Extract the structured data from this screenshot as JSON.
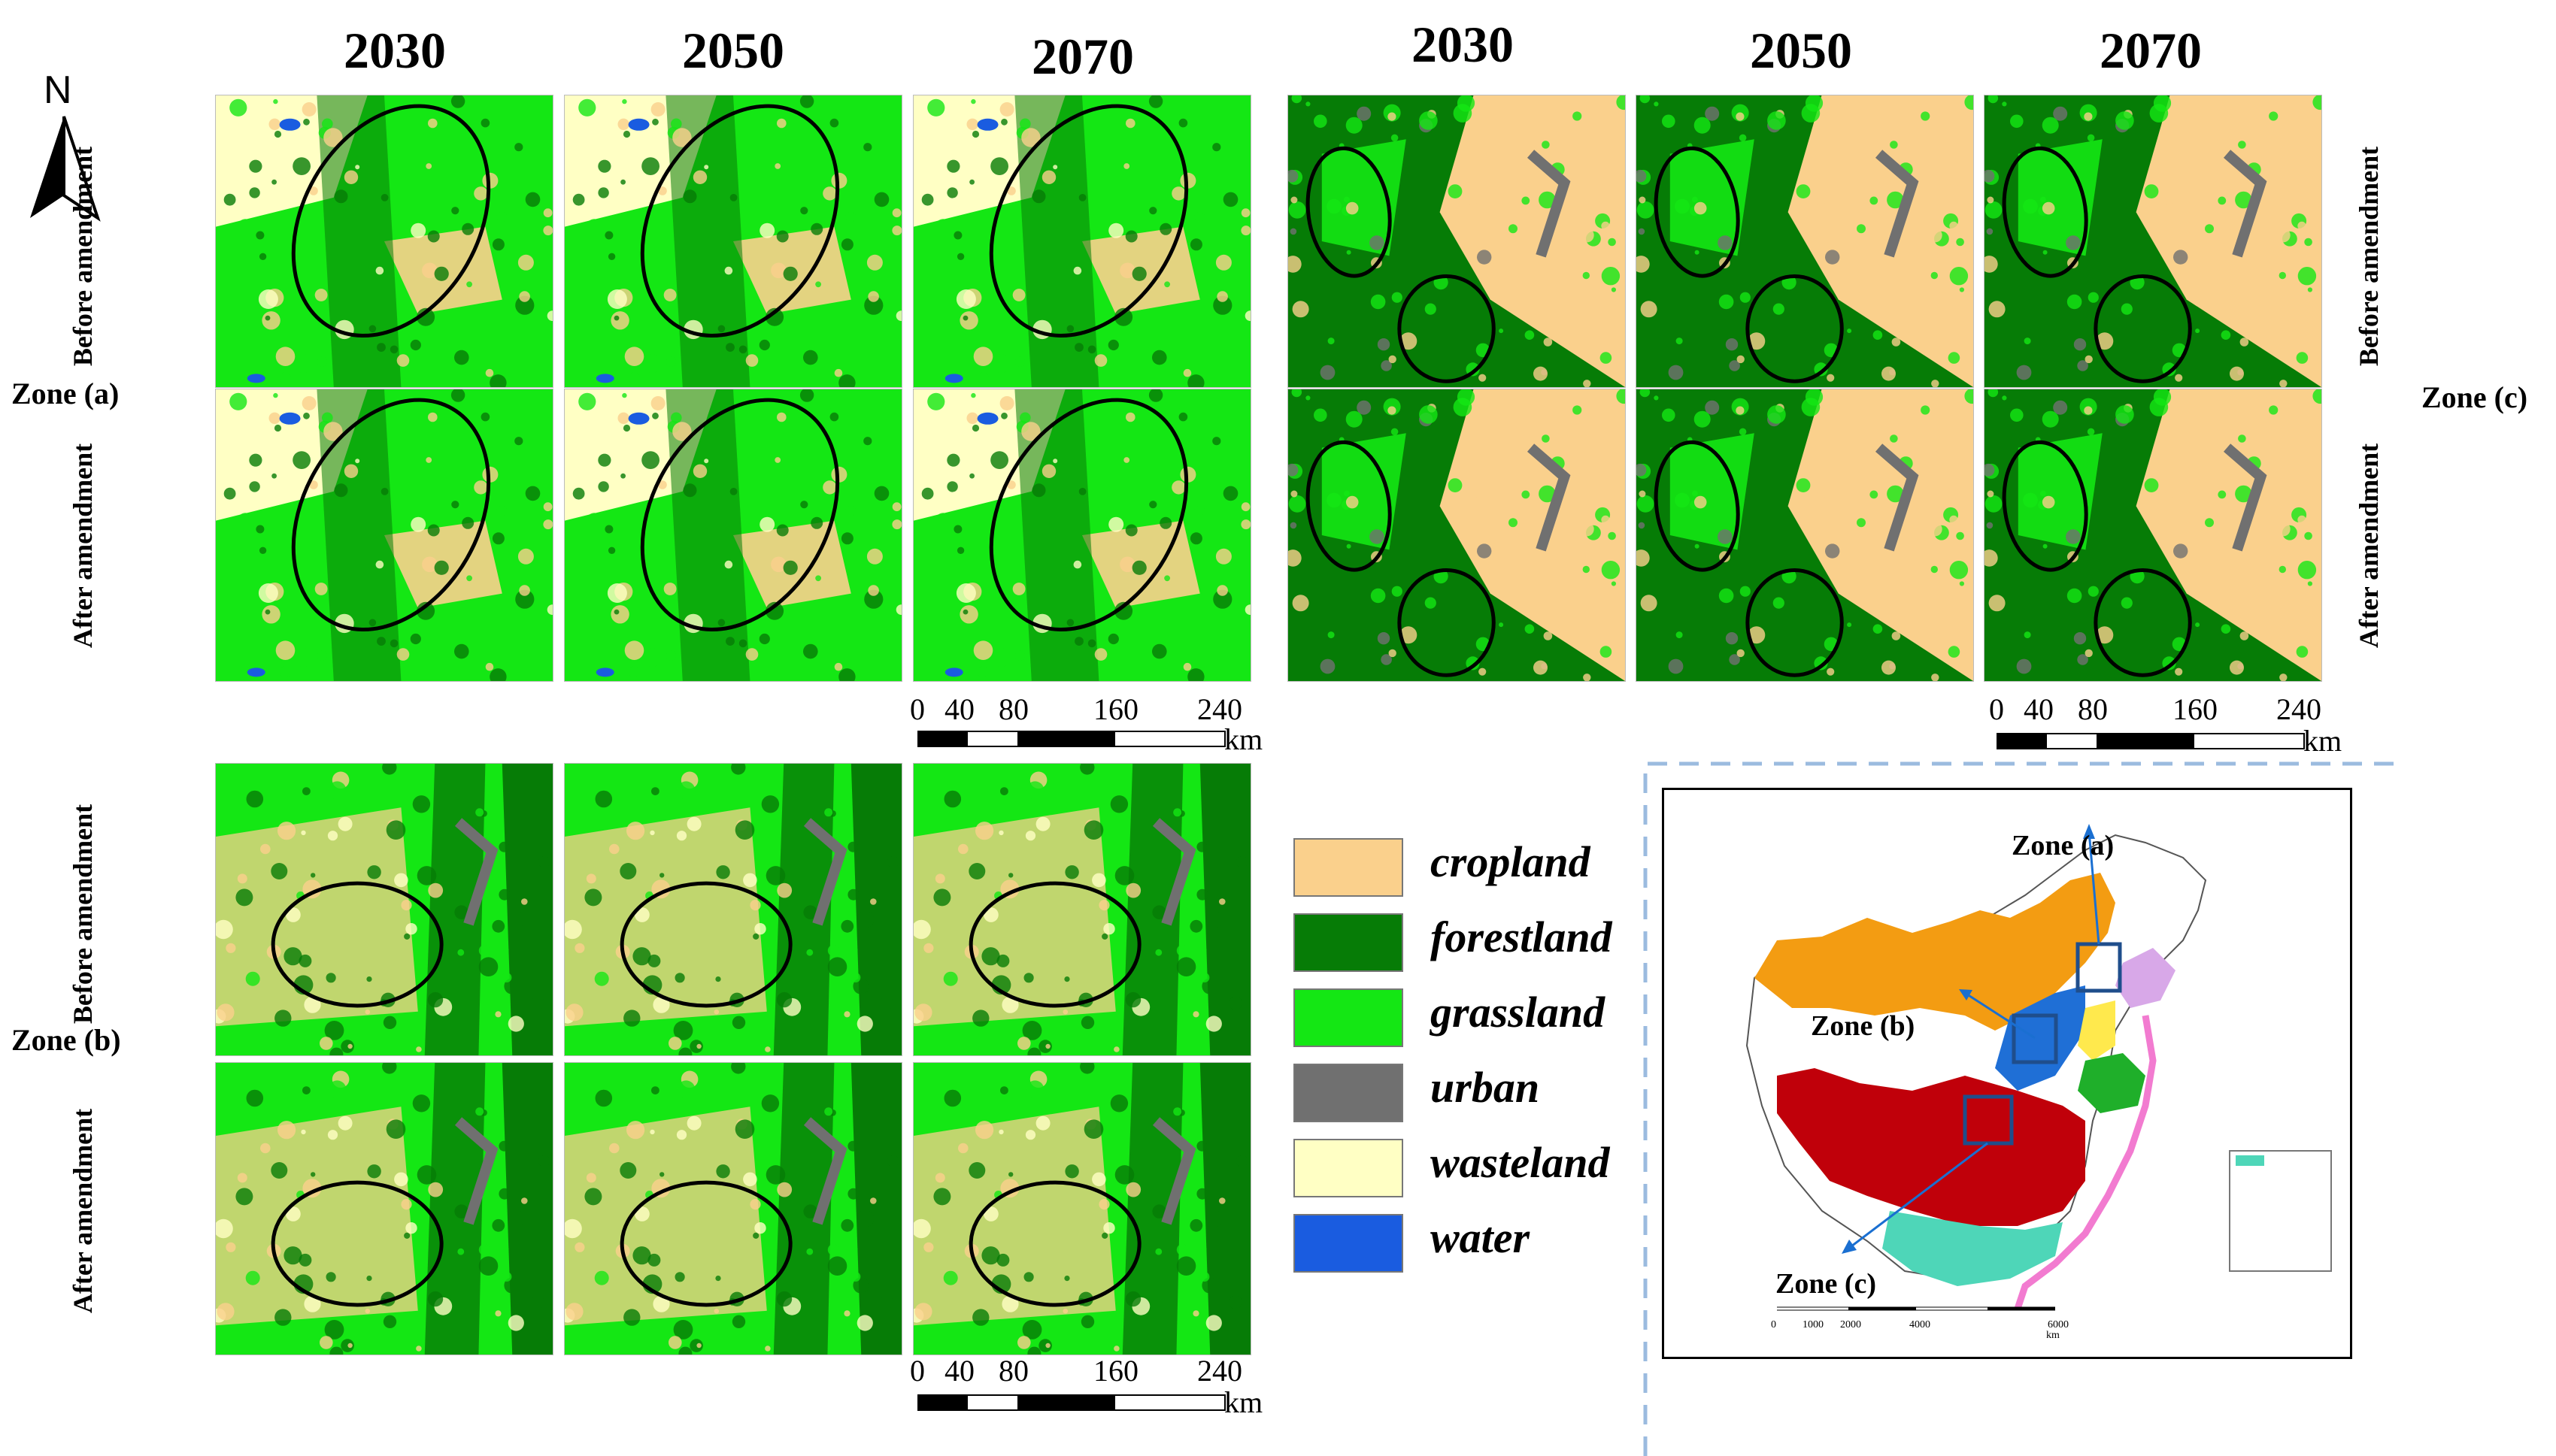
{
  "columns_left": [
    "2030",
    "2050",
    "2070"
  ],
  "columns_right": [
    "2030",
    "2050",
    "2070"
  ],
  "zones": {
    "a": "Zone (a)",
    "b": "Zone (b)",
    "c": "Zone (c)"
  },
  "rows": {
    "before": "Before amendment",
    "after": "After amendment"
  },
  "north_label": "N",
  "scale_bar": {
    "ticks": [
      "0",
      "40",
      "80",
      "160",
      "240"
    ],
    "unit": "km"
  },
  "legend": [
    {
      "label": "cropland",
      "color": "#FAD08C"
    },
    {
      "label": "forestland",
      "color": "#067C06"
    },
    {
      "label": "grassland",
      "color": "#14E714"
    },
    {
      "label": "urban",
      "color": "#707070"
    },
    {
      "label": "wasteland",
      "color": "#FFFFC4"
    },
    {
      "label": "water",
      "color": "#1A5CE0"
    }
  ],
  "inset_map": {
    "labels": {
      "a": "Zone (a)",
      "b": "Zone (b)",
      "c": "Zone (c)"
    },
    "scale_ticks": [
      "0",
      "1000",
      "2000",
      "4000",
      "6000"
    ],
    "scale_unit": "km"
  }
}
